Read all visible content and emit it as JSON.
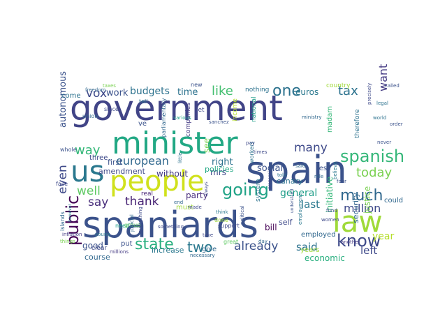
{
  "words": [
    {
      "text": "government",
      "color": "#414487"
    },
    {
      "text": "spain",
      "color": "#3b528b"
    },
    {
      "text": "spaniards",
      "color": "#3b528b"
    },
    {
      "text": "minister",
      "color": "#22a884"
    },
    {
      "text": "people",
      "color": "#d0e11c"
    },
    {
      "text": "us",
      "color": "#2a788e"
    },
    {
      "text": "law",
      "color": "#a0da39"
    },
    {
      "text": "going",
      "color": "#20a386"
    },
    {
      "text": "much",
      "color": "#31688e"
    },
    {
      "text": "spanish",
      "color": "#35b779"
    },
    {
      "text": "know",
      "color": "#3e4a89"
    },
    {
      "text": "public",
      "color": "#440154"
    },
    {
      "text": "state",
      "color": "#29af7f"
    },
    {
      "text": "one",
      "color": "#2c728e"
    },
    {
      "text": "two",
      "color": "#2a788e"
    },
    {
      "text": "like",
      "color": "#44bf70"
    },
    {
      "text": "tax",
      "color": "#2c728e"
    },
    {
      "text": "vox",
      "color": "#3e4989"
    },
    {
      "text": "way",
      "color": "#35b779"
    },
    {
      "text": "today",
      "color": "#7ad151"
    },
    {
      "text": "european",
      "color": "#31688e"
    },
    {
      "text": "thank",
      "color": "#482475"
    },
    {
      "text": "say",
      "color": "#472c7a"
    },
    {
      "text": "many",
      "color": "#3e4989"
    },
    {
      "text": "already",
      "color": "#3b528b"
    },
    {
      "text": "even",
      "color": "#3e4989"
    },
    {
      "text": "million",
      "color": "#3e4989"
    },
    {
      "text": "budgets",
      "color": "#2c728e"
    },
    {
      "text": "want",
      "color": "#443a83"
    },
    {
      "text": "well",
      "color": "#5ec962"
    },
    {
      "text": "general",
      "color": "#1f9e89"
    },
    {
      "text": "last",
      "color": "#2a788e"
    },
    {
      "text": "year",
      "color": "#b5de2b"
    },
    {
      "text": "left",
      "color": "#3e4989"
    },
    {
      "text": "said",
      "color": "#2c728e"
    },
    {
      "text": "work",
      "color": "#3b528b"
    },
    {
      "text": "time",
      "color": "#2c728e"
    },
    {
      "text": "good",
      "color": "#3b528b"
    },
    {
      "text": "euros",
      "color": "#2a788e"
    },
    {
      "text": "social",
      "color": "#3b528b"
    },
    {
      "text": "right",
      "color": "#2c728e"
    },
    {
      "text": "first",
      "color": "#3b528b"
    },
    {
      "text": "autonomous",
      "color": "#3b528b"
    },
    {
      "text": "initiative",
      "color": "#35b779"
    },
    {
      "text": "economic",
      "color": "#29af7f"
    },
    {
      "text": "mrs",
      "color": "#3e4989"
    },
    {
      "text": "security",
      "color": "#31688e"
    },
    {
      "text": "justice",
      "color": "#7ad151"
    },
    {
      "text": "party",
      "color": "#472c7a"
    },
    {
      "text": "amendment",
      "color": "#3e4989"
    },
    {
      "text": "without",
      "color": "#443a83"
    },
    {
      "text": "policies",
      "color": "#22a884"
    },
    {
      "text": "canary",
      "color": "#2c728e"
    },
    {
      "text": "course",
      "color": "#31688e"
    },
    {
      "text": "increase",
      "color": "#2a788e"
    },
    {
      "text": "must",
      "color": "#a0da39"
    },
    {
      "text": "self",
      "color": "#3e4989"
    },
    {
      "text": "employed",
      "color": "#31688e"
    },
    {
      "text": "see",
      "color": "#7ad151"
    },
    {
      "text": "less",
      "color": "#3b528b"
    },
    {
      "text": "come",
      "color": "#2c728e"
    },
    {
      "text": "could",
      "color": "#31688e"
    },
    {
      "text": "three",
      "color": "#3e4989"
    },
    {
      "text": "put",
      "color": "#3b528b"
    },
    {
      "text": "give",
      "color": "#31688e"
    },
    {
      "text": "years",
      "color": "#a0da39"
    },
    {
      "text": "bill",
      "color": "#440154"
    },
    {
      "text": "madam",
      "color": "#35b779"
    },
    {
      "text": "therefore",
      "color": "#2c728e"
    },
    {
      "text": "income",
      "color": "#b5de2b"
    },
    {
      "text": "national",
      "color": "#1f9e89"
    },
    {
      "text": "country",
      "color": "#a0da39"
    },
    {
      "text": "nothing",
      "color": "#2c728e"
    },
    {
      "text": "let",
      "color": "#3e4989"
    },
    {
      "text": "companies",
      "color": "#443a83"
    },
    {
      "text": "parliamentary",
      "color": "#31688e"
    },
    {
      "text": "real",
      "color": "#482475"
    },
    {
      "text": "whole",
      "color": "#3b528b"
    },
    {
      "text": "clear",
      "color": "#3e4989"
    },
    {
      "text": "millions",
      "color": "#443a83"
    },
    {
      "text": "need",
      "color": "#1f9e89"
    },
    {
      "text": "face",
      "color": "#3e4989"
    },
    {
      "text": "taxes",
      "color": "#7ad151"
    },
    {
      "text": "freedom",
      "color": "#31688e"
    },
    {
      "text": "union",
      "color": "#31688e"
    },
    {
      "text": "since",
      "color": "#3e4989"
    },
    {
      "text": "tell",
      "color": "#2c728e"
    },
    {
      "text": "new",
      "color": "#3b528b"
    },
    {
      "text": "workers",
      "color": "#2c728e"
    },
    {
      "text": "done",
      "color": "#a0da39"
    },
    {
      "text": "great",
      "color": "#5ec962"
    },
    {
      "text": "support",
      "color": "#3e4989"
    },
    {
      "text": "necessary",
      "color": "#31688e"
    },
    {
      "text": "ministry",
      "color": "#31688e"
    },
    {
      "text": "women",
      "color": "#3e4989"
    },
    {
      "text": "another",
      "color": "#443a83"
    },
    {
      "text": "four",
      "color": "#3b528b"
    },
    {
      "text": "order",
      "color": "#3b528b"
    },
    {
      "text": "called",
      "color": "#3b528b"
    },
    {
      "text": "world",
      "color": "#2c728e"
    },
    {
      "text": "islands",
      "color": "#31688e"
    },
    {
      "text": "inflation",
      "color": "#443a83"
    },
    {
      "text": "things",
      "color": "#7ad151"
    },
    {
      "text": "however",
      "color": "#2a788e"
    },
    {
      "text": "everything",
      "color": "#3e4989"
    },
    {
      "text": "young",
      "color": "#2a788e"
    },
    {
      "text": "group",
      "color": "#5ec962"
    },
    {
      "text": "judicial",
      "color": "#31688e"
    },
    {
      "text": "something",
      "color": "#3e4989"
    },
    {
      "text": "political",
      "color": "#3b528b"
    },
    {
      "text": "system",
      "color": "#2c728e"
    },
    {
      "text": "fund",
      "color": "#3e4989"
    },
    {
      "text": "day",
      "color": "#31688e"
    },
    {
      "text": "think",
      "color": "#2a788e"
    },
    {
      "text": "pay",
      "color": "#3e4989"
    },
    {
      "text": "always",
      "color": "#3e4989"
    },
    {
      "text": "little",
      "color": "#2c728e"
    },
    {
      "text": "sanchez",
      "color": "#3b528b"
    },
    {
      "text": "various",
      "color": "#1f9e89"
    },
    {
      "text": "legal",
      "color": "#2c728e"
    },
    {
      "text": "believe",
      "color": "#2a788e"
    },
    {
      "text": "told",
      "color": "#2c728e"
    },
    {
      "text": "employment",
      "color": "#2a788e"
    },
    {
      "text": "proposal",
      "color": "#3e4989"
    },
    {
      "text": "understand",
      "color": "#3b528b"
    },
    {
      "text": "precisely",
      "color": "#3e4989"
    },
    {
      "text": "times",
      "color": "#3e4989"
    },
    {
      "text": "take",
      "color": "#3e4989"
    },
    {
      "text": "end",
      "color": "#31688e"
    },
    {
      "text": "never",
      "color": "#3b528b"
    },
    {
      "text": "made",
      "color": "#3e4989"
    },
    {
      "text": "ve",
      "color": "#3b528b"
    },
    {
      "text": "said",
      "color": "#31688e"
    },
    {
      "text": "role",
      "color": "#31688e"
    }
  ]
}
